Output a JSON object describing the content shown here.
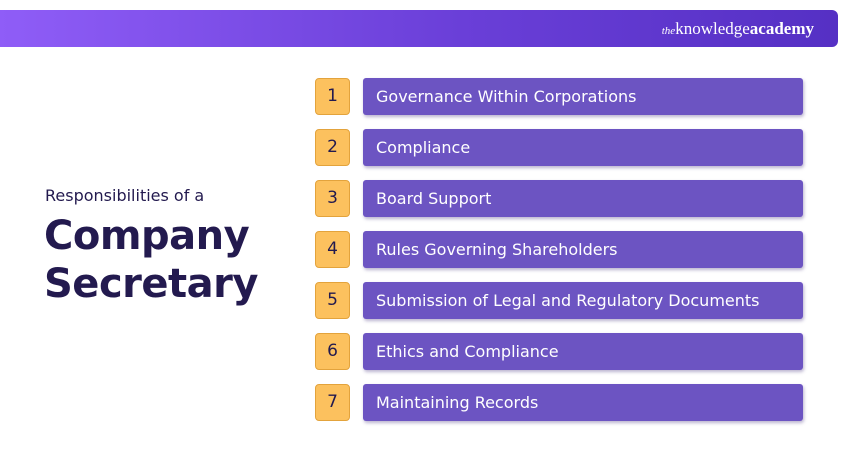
{
  "header": {
    "brand": {
      "prefix": "the",
      "name": "knowledge",
      "suffix": "academy"
    }
  },
  "heading": {
    "subtitle": "Responsibilities of a",
    "title_lines": [
      "Company",
      "Secretary"
    ]
  },
  "items": [
    {
      "number": 1,
      "label": "Governance Within Corporations"
    },
    {
      "number": 2,
      "label": "Compliance"
    },
    {
      "number": 3,
      "label": "Board Support"
    },
    {
      "number": 4,
      "label": "Rules Governing Shareholders"
    },
    {
      "number": 5,
      "label": "Submission of Legal and Regulatory Documents"
    },
    {
      "number": 6,
      "label": "Ethics and Compliance"
    },
    {
      "number": 7,
      "label": "Maintaining Records"
    }
  ]
}
